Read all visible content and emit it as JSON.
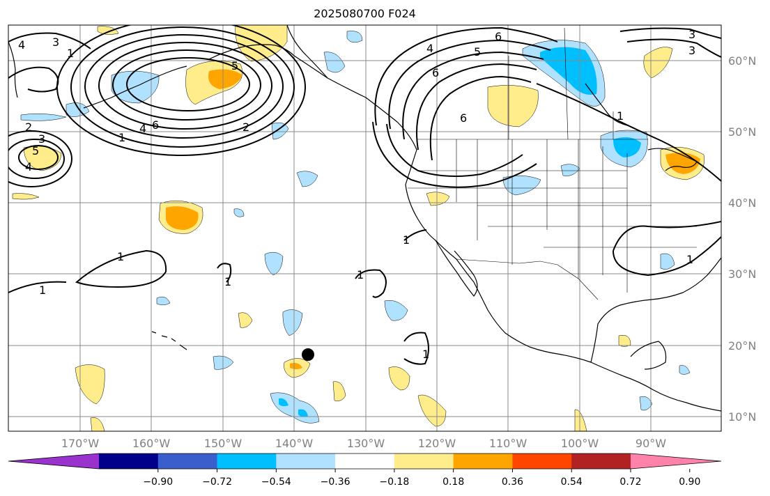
{
  "title": "2025080700 F024",
  "longitude_labels": [
    "170°W",
    "160°W",
    "150°W",
    "140°W",
    "130°W",
    "120°W",
    "110°W",
    "100°W",
    "90°W"
  ],
  "latitude_labels": [
    "60°N",
    "50°N",
    "40°N",
    "30°N",
    "20°N",
    "10°N"
  ],
  "colorbar": {
    "colors": [
      "#9a32cd",
      "#00008b",
      "#3a5fcd",
      "#00bfff",
      "#b0e2ff",
      "#ffffff",
      "#ffec8b",
      "#ffa500",
      "#ff4500",
      "#b22222",
      "#ff82ab"
    ],
    "tick_labels": [
      "−0.90",
      "−0.72",
      "−0.54",
      "−0.36",
      "−0.18",
      "0.18",
      "0.36",
      "0.54",
      "0.72",
      "0.90"
    ]
  },
  "contour_labels": [
    "4",
    "3",
    "1",
    "6",
    "4",
    "2",
    "3",
    "4",
    "5",
    "1",
    "2",
    "6",
    "5",
    "4",
    "6",
    "5",
    "6",
    "3",
    "3",
    "1",
    "1",
    "1",
    "1",
    "1",
    "1",
    "1",
    "1"
  ],
  "marker": {
    "name": "storm-center-dot",
    "color": "#000000"
  }
}
